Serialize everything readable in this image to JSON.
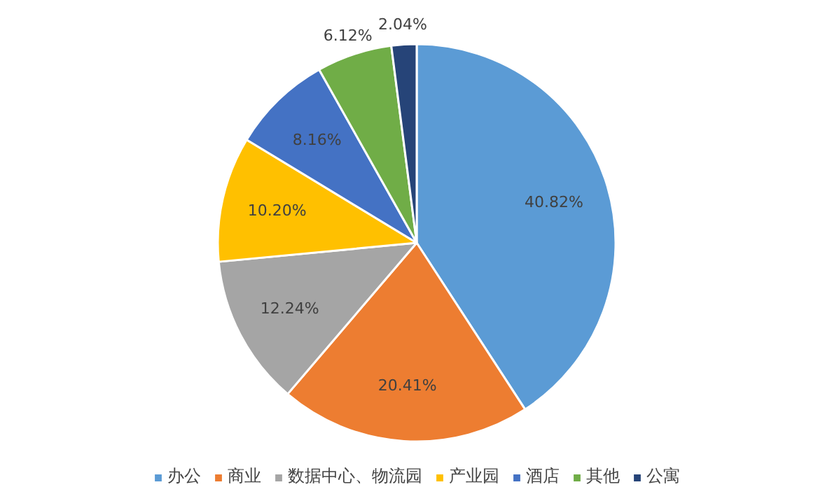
{
  "chart_data": {
    "type": "pie",
    "categories": [
      "办公",
      "商业",
      "数据中心、物流园",
      "产业园",
      "酒店",
      "其他",
      "公寓"
    ],
    "values": [
      40.82,
      20.41,
      12.24,
      10.2,
      8.16,
      6.12,
      2.04
    ],
    "colors": [
      "#5b9bd5",
      "#ed7d31",
      "#a5a5a5",
      "#ffc000",
      "#4472c4",
      "#70ad47",
      "#264478"
    ],
    "value_labels": [
      "40.82%",
      "20.41%",
      "12.24%",
      "10.20%",
      "8.16%",
      "6.12%",
      "2.04%"
    ],
    "legend": "bottom"
  }
}
